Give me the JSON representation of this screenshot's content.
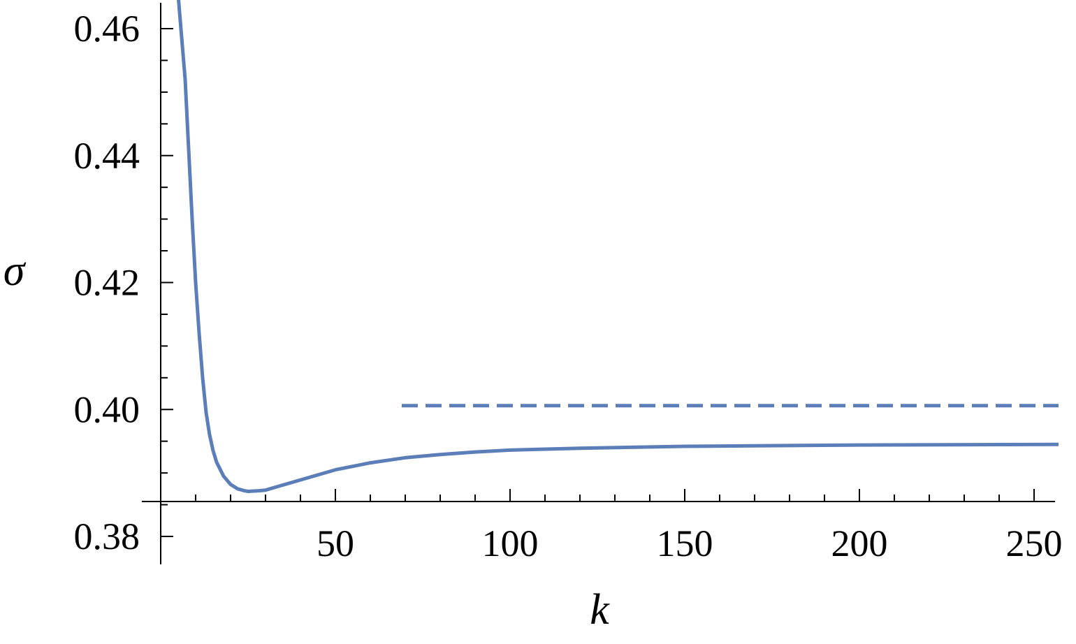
{
  "chart_data": {
    "type": "line",
    "xlabel": "k",
    "ylabel": "σ",
    "xlim": [
      0,
      256
    ],
    "ylim": [
      0.3855,
      0.465
    ],
    "x_ticks": [
      50,
      100,
      150,
      200,
      250
    ],
    "x_tick_labels": [
      "50",
      "100",
      "150",
      "200",
      "250"
    ],
    "x_minor_step": 10,
    "y_ticks": [
      0.38,
      0.4,
      0.42,
      0.44,
      0.46
    ],
    "y_tick_labels": [
      "0.38",
      "0.40",
      "0.42",
      "0.44",
      "0.46"
    ],
    "y_minor_step": 0.005,
    "x_axis_crosses_y_at": 0.3855,
    "grid": false,
    "series": [
      {
        "style": "solid",
        "color": "#5b7db8",
        "points": [
          [
            5,
            0.4652
          ],
          [
            7,
            0.452
          ],
          [
            8,
            0.441
          ],
          [
            9,
            0.43
          ],
          [
            10,
            0.42
          ],
          [
            11,
            0.412
          ],
          [
            12,
            0.405
          ],
          [
            13,
            0.3995
          ],
          [
            14,
            0.396
          ],
          [
            15,
            0.3935
          ],
          [
            16,
            0.3917
          ],
          [
            18,
            0.3895
          ],
          [
            20,
            0.3882
          ],
          [
            22,
            0.3875
          ],
          [
            24,
            0.3872
          ],
          [
            25,
            0.3871
          ],
          [
            28,
            0.3872
          ],
          [
            30,
            0.3873
          ],
          [
            35,
            0.3881
          ],
          [
            40,
            0.3889
          ],
          [
            50,
            0.3905
          ],
          [
            60,
            0.3916
          ],
          [
            70,
            0.3924
          ],
          [
            80,
            0.3929
          ],
          [
            90,
            0.3933
          ],
          [
            100,
            0.3936
          ],
          [
            120,
            0.3939
          ],
          [
            150,
            0.3942
          ],
          [
            200,
            0.3944
          ],
          [
            257,
            0.3945
          ]
        ]
      },
      {
        "style": "dashed",
        "color": "#5b7db8",
        "points": [
          [
            69,
            0.4006
          ],
          [
            257,
            0.4006
          ]
        ]
      }
    ]
  }
}
